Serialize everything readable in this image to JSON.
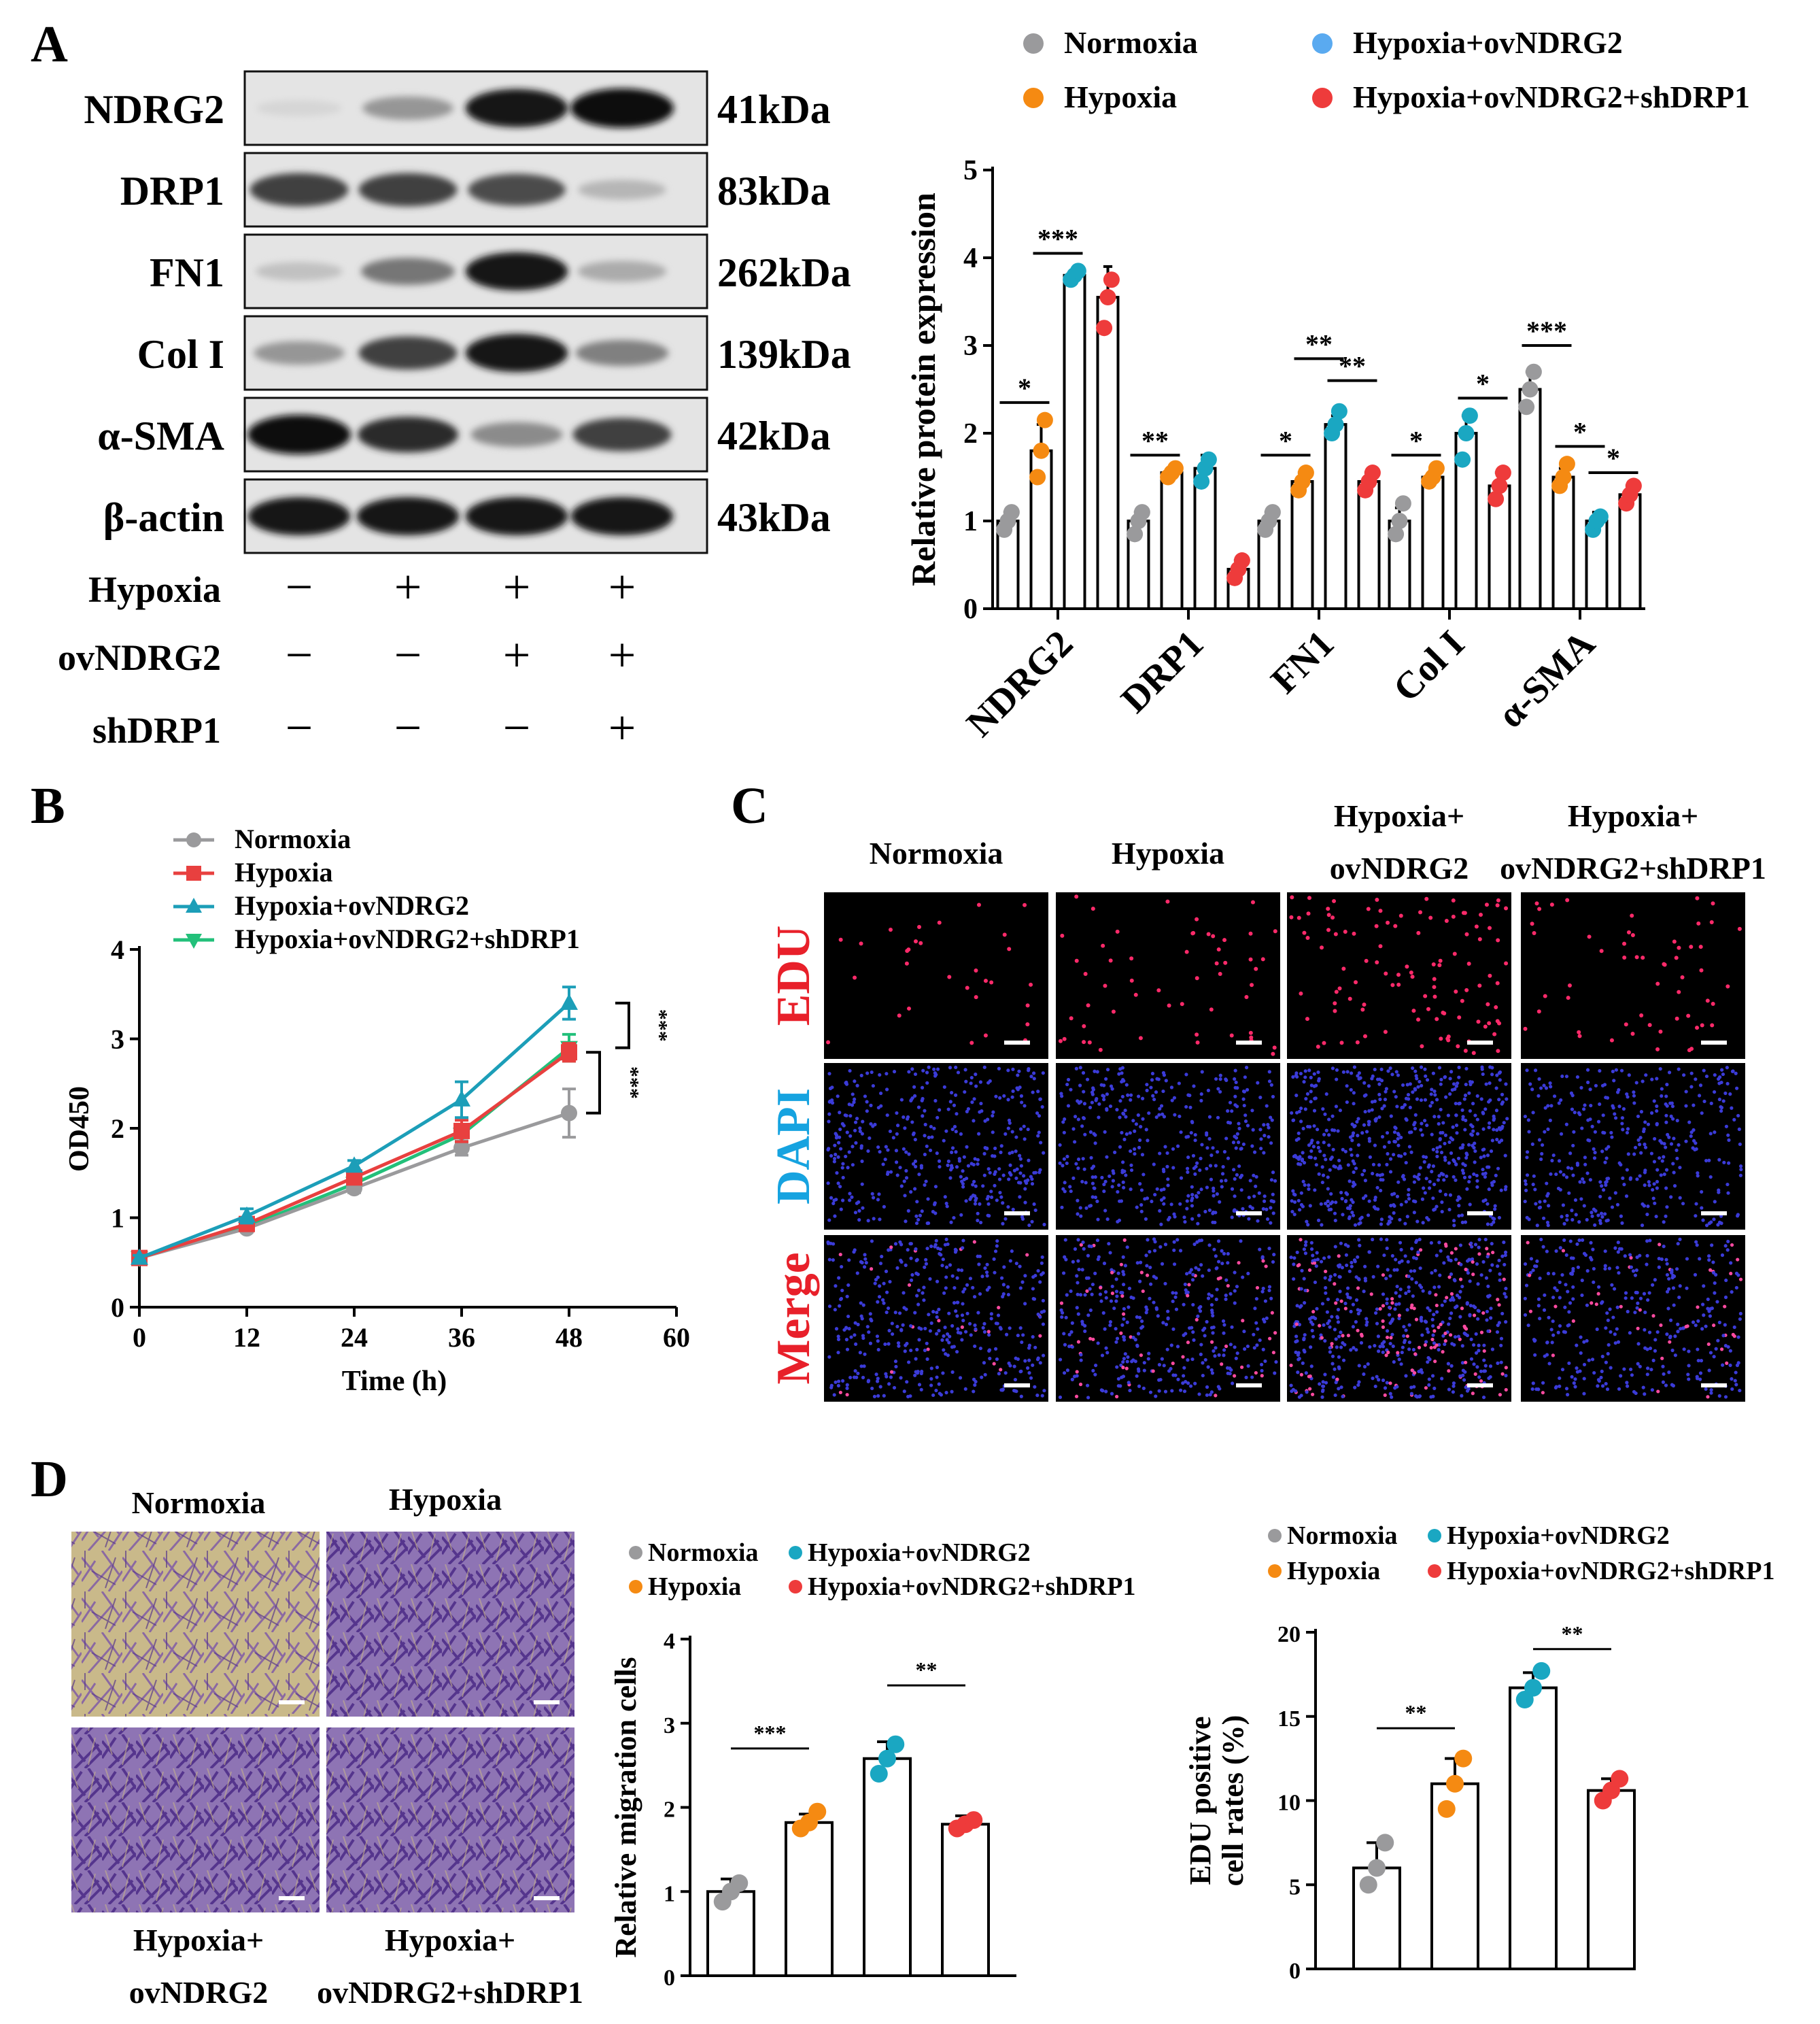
{
  "panel_letters": [
    "A",
    "B",
    "C",
    "D"
  ],
  "colors": {
    "normoxia": "#9a9a9c",
    "hypoxia": "#f58a12",
    "hypoxia_ovndrg2": "#1aa7c2",
    "hypoxia_ovndrg2_legend_a": "#5aaaf0",
    "hypoxia_ovndrg2_shdrp1": "#ee3b3b",
    "line_hypoxia": "#e8403f",
    "line_ovndrg2": "#1c9eb8",
    "line_shdrp1": "#22c07a",
    "edu_red": "#e8202a",
    "dapi_blue": "#16a3e0"
  },
  "panel_a": {
    "western_blot": {
      "proteins": [
        "NDRG2",
        "DRP1",
        "FN1",
        "Col I",
        "α-SMA",
        "β-actin"
      ],
      "sizes": [
        "41kDa",
        "83kDa",
        "262kDa",
        "139kDa",
        "42kDa",
        "43kDa"
      ],
      "band_intensity": [
        [
          0.05,
          0.35,
          0.95,
          1.0
        ],
        [
          0.75,
          0.75,
          0.7,
          0.2
        ],
        [
          0.15,
          0.5,
          0.95,
          0.25
        ],
        [
          0.35,
          0.75,
          0.95,
          0.45
        ],
        [
          1.0,
          0.85,
          0.4,
          0.75
        ],
        [
          0.95,
          0.95,
          0.95,
          0.95
        ]
      ],
      "conditions": [
        {
          "label": "Hypoxia",
          "values": [
            "−",
            "+",
            "+",
            "+"
          ]
        },
        {
          "label": "ovNDRG2",
          "values": [
            "−",
            "−",
            "+",
            "+"
          ]
        },
        {
          "label": "shDRP1",
          "values": [
            "−",
            "−",
            "−",
            "+"
          ]
        }
      ]
    }
  },
  "chart_data": [
    {
      "id": "A",
      "type": "bar",
      "title": "",
      "xlabel": "",
      "ylabel": "Relative protein expression",
      "ylim": [
        0,
        5
      ],
      "yticks": [
        "0",
        "1",
        "2",
        "3",
        "4",
        "5"
      ],
      "categories": [
        "NDRG2",
        "DRP1",
        "FN1",
        "Col I",
        "α-SMA"
      ],
      "legend": [
        "Normoxia",
        "Hypoxia",
        "Hypoxia+ovNDRG2",
        "Hypoxia+ovNDRG2+shDRP1"
      ],
      "series": [
        {
          "name": "Normoxia",
          "values": [
            1.0,
            1.0,
            1.0,
            1.0,
            2.5
          ],
          "error": [
            0.1,
            0.1,
            0.1,
            0.15,
            0.2
          ],
          "points": [
            [
              0.9,
              1.0,
              1.1
            ],
            [
              0.85,
              1.0,
              1.1
            ],
            [
              0.9,
              1.0,
              1.1
            ],
            [
              0.85,
              1.0,
              1.2
            ],
            [
              2.3,
              2.5,
              2.7
            ]
          ]
        },
        {
          "name": "Hypoxia",
          "values": [
            1.8,
            1.55,
            1.45,
            1.5,
            1.5
          ],
          "error": [
            0.3,
            0.05,
            0.1,
            0.07,
            0.1
          ],
          "points": [
            [
              1.5,
              1.8,
              2.15
            ],
            [
              1.5,
              1.55,
              1.6
            ],
            [
              1.35,
              1.45,
              1.55
            ],
            [
              1.45,
              1.5,
              1.6
            ],
            [
              1.4,
              1.5,
              1.65
            ]
          ]
        },
        {
          "name": "Hypoxia+ovNDRG2",
          "values": [
            3.8,
            1.6,
            2.1,
            2.0,
            1.0
          ],
          "error": [
            0.05,
            0.15,
            0.1,
            0.2,
            0.1
          ],
          "points": [
            [
              3.75,
              3.8,
              3.85
            ],
            [
              1.45,
              1.6,
              1.7
            ],
            [
              2.0,
              2.1,
              2.25
            ],
            [
              1.7,
              2.0,
              2.2
            ],
            [
              0.9,
              1.0,
              1.05
            ]
          ]
        },
        {
          "name": "Hypoxia+ovNDRG2+shDRP1",
          "values": [
            3.55,
            0.45,
            1.45,
            1.4,
            1.3
          ],
          "error": [
            0.35,
            0.1,
            0.1,
            0.15,
            0.1
          ],
          "points": [
            [
              3.2,
              3.55,
              3.75
            ],
            [
              0.35,
              0.45,
              0.55
            ],
            [
              1.35,
              1.45,
              1.55
            ],
            [
              1.25,
              1.4,
              1.55
            ],
            [
              1.2,
              1.3,
              1.4
            ]
          ]
        }
      ],
      "annotations": [
        "*",
        "***",
        "**",
        "*",
        "**",
        "**",
        "*",
        "*",
        "***",
        "*",
        "*"
      ]
    },
    {
      "id": "B",
      "type": "line",
      "title": "",
      "xlabel": "Time (h)",
      "ylabel": "OD450",
      "xlim": [
        0,
        60
      ],
      "ylim": [
        0,
        4
      ],
      "xticks": [
        "0",
        "12",
        "24",
        "36",
        "48",
        "60"
      ],
      "yticks": [
        "0",
        "1",
        "2",
        "3",
        "4"
      ],
      "x": [
        0,
        12,
        24,
        36,
        48
      ],
      "series": [
        {
          "name": "Normoxia",
          "values": [
            0.55,
            0.88,
            1.33,
            1.78,
            2.17
          ],
          "error": [
            0.03,
            0.04,
            0.05,
            0.08,
            0.27
          ]
        },
        {
          "name": "Hypoxia",
          "values": [
            0.55,
            0.93,
            1.45,
            1.97,
            2.85
          ],
          "error": [
            0.03,
            0.05,
            0.06,
            0.12,
            0.1
          ]
        },
        {
          "name": "Hypoxia+ovNDRG2",
          "values": [
            0.55,
            1.02,
            1.58,
            2.32,
            3.4
          ],
          "error": [
            0.03,
            0.08,
            0.06,
            0.2,
            0.18
          ]
        },
        {
          "name": "Hypoxia+ovNDRG2+shDRP1",
          "values": [
            0.55,
            0.9,
            1.38,
            1.93,
            2.9
          ],
          "error": [
            0.03,
            0.05,
            0.05,
            0.1,
            0.15
          ]
        }
      ],
      "annotations": [
        "***",
        "***"
      ]
    },
    {
      "id": "D-migration",
      "type": "bar",
      "title": "",
      "xlabel": "",
      "ylabel": "Relative migration cells",
      "ylim": [
        0,
        4
      ],
      "yticks": [
        "0",
        "1",
        "2",
        "3",
        "4"
      ],
      "categories": [
        "Normoxia",
        "Hypoxia",
        "Hypoxia+ovNDRG2",
        "Hypoxia+ovNDRG2+shDRP1"
      ],
      "legend": [
        "Normoxia",
        "Hypoxia",
        "Hypoxia+ovNDRG2",
        "Hypoxia+ovNDRG2+shDRP1"
      ],
      "values": [
        1.0,
        1.82,
        2.58,
        1.8
      ],
      "error": [
        0.15,
        0.1,
        0.2,
        0.1
      ],
      "points": [
        [
          0.88,
          1.0,
          1.1
        ],
        [
          1.75,
          1.82,
          1.95
        ],
        [
          2.4,
          2.58,
          2.75
        ],
        [
          1.75,
          1.8,
          1.85
        ]
      ],
      "annotations": [
        "***",
        "**"
      ]
    },
    {
      "id": "D-edu",
      "type": "bar",
      "title": "",
      "xlabel": "",
      "ylabel": "EDU positive cell rates (%)",
      "ylabel_lines": [
        "EDU positive",
        "cell rates (%)"
      ],
      "ylim": [
        0,
        20
      ],
      "yticks": [
        "0",
        "5",
        "10",
        "15",
        "20"
      ],
      "categories": [
        "Normoxia",
        "Hypoxia",
        "Hypoxia+ovNDRG2",
        "Hypoxia+ovNDRG2+shDRP1"
      ],
      "legend": [
        "Normoxia",
        "Hypoxia",
        "Hypoxia+ovNDRG2",
        "Hypoxia+ovNDRG2+shDRP1"
      ],
      "values": [
        6.0,
        11.0,
        16.7,
        10.6
      ],
      "error": [
        1.5,
        1.5,
        0.9,
        0.7
      ],
      "points": [
        [
          5.0,
          6.0,
          7.5
        ],
        [
          9.5,
          11.0,
          12.5
        ],
        [
          16.0,
          16.7,
          17.7
        ],
        [
          10.0,
          10.6,
          11.3
        ]
      ],
      "annotations": [
        "**",
        "**"
      ]
    }
  ],
  "panel_c": {
    "columns": [
      {
        "lines": [
          "Normoxia"
        ]
      },
      {
        "lines": [
          "Hypoxia"
        ]
      },
      {
        "lines": [
          "Hypoxia+",
          "ovNDRG2"
        ]
      },
      {
        "lines": [
          "Hypoxia+",
          "ovNDRG2+shDRP1"
        ]
      }
    ],
    "rows": [
      "EDU",
      "DAPI",
      "Merge"
    ]
  },
  "panel_d": {
    "image_labels": {
      "normoxia": [
        "Normoxia"
      ],
      "hypoxia": [
        "Hypoxia"
      ],
      "ovndrg2": [
        "Hypoxia+",
        "ovNDRG2"
      ],
      "shdrp1": [
        "Hypoxia+",
        "ovNDRG2+shDRP1"
      ]
    }
  }
}
